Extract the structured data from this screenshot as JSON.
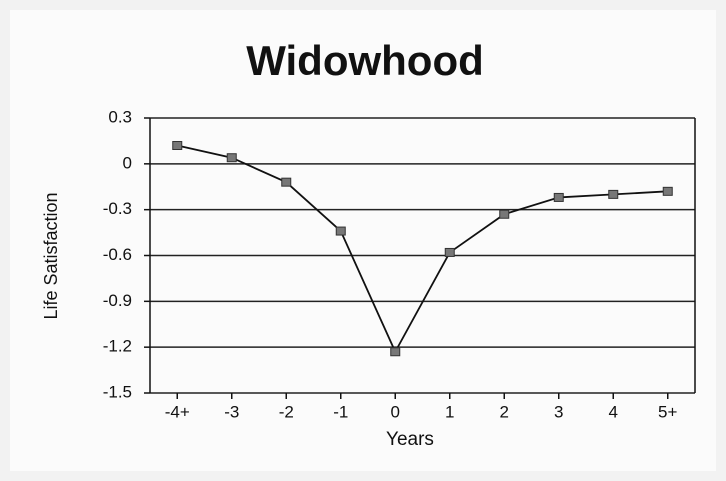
{
  "chart_data": {
    "type": "line",
    "title": "Widowhood",
    "xlabel": "Years",
    "ylabel": "Life Satisfaction",
    "categories": [
      "-4+",
      "-3",
      "-2",
      "-1",
      "0",
      "1",
      "2",
      "3",
      "4",
      "5+"
    ],
    "series": [
      {
        "name": "Widowhood",
        "color": "#111111",
        "values": [
          0.12,
          0.04,
          -0.12,
          -0.44,
          -1.23,
          -0.58,
          -0.33,
          -0.22,
          -0.2,
          -0.18
        ]
      }
    ],
    "ylim": [
      -1.5,
      0.3
    ],
    "yticks": [
      0.3,
      0,
      -0.3,
      -0.6,
      -0.9,
      -1.2,
      -1.5
    ],
    "grid": true
  }
}
